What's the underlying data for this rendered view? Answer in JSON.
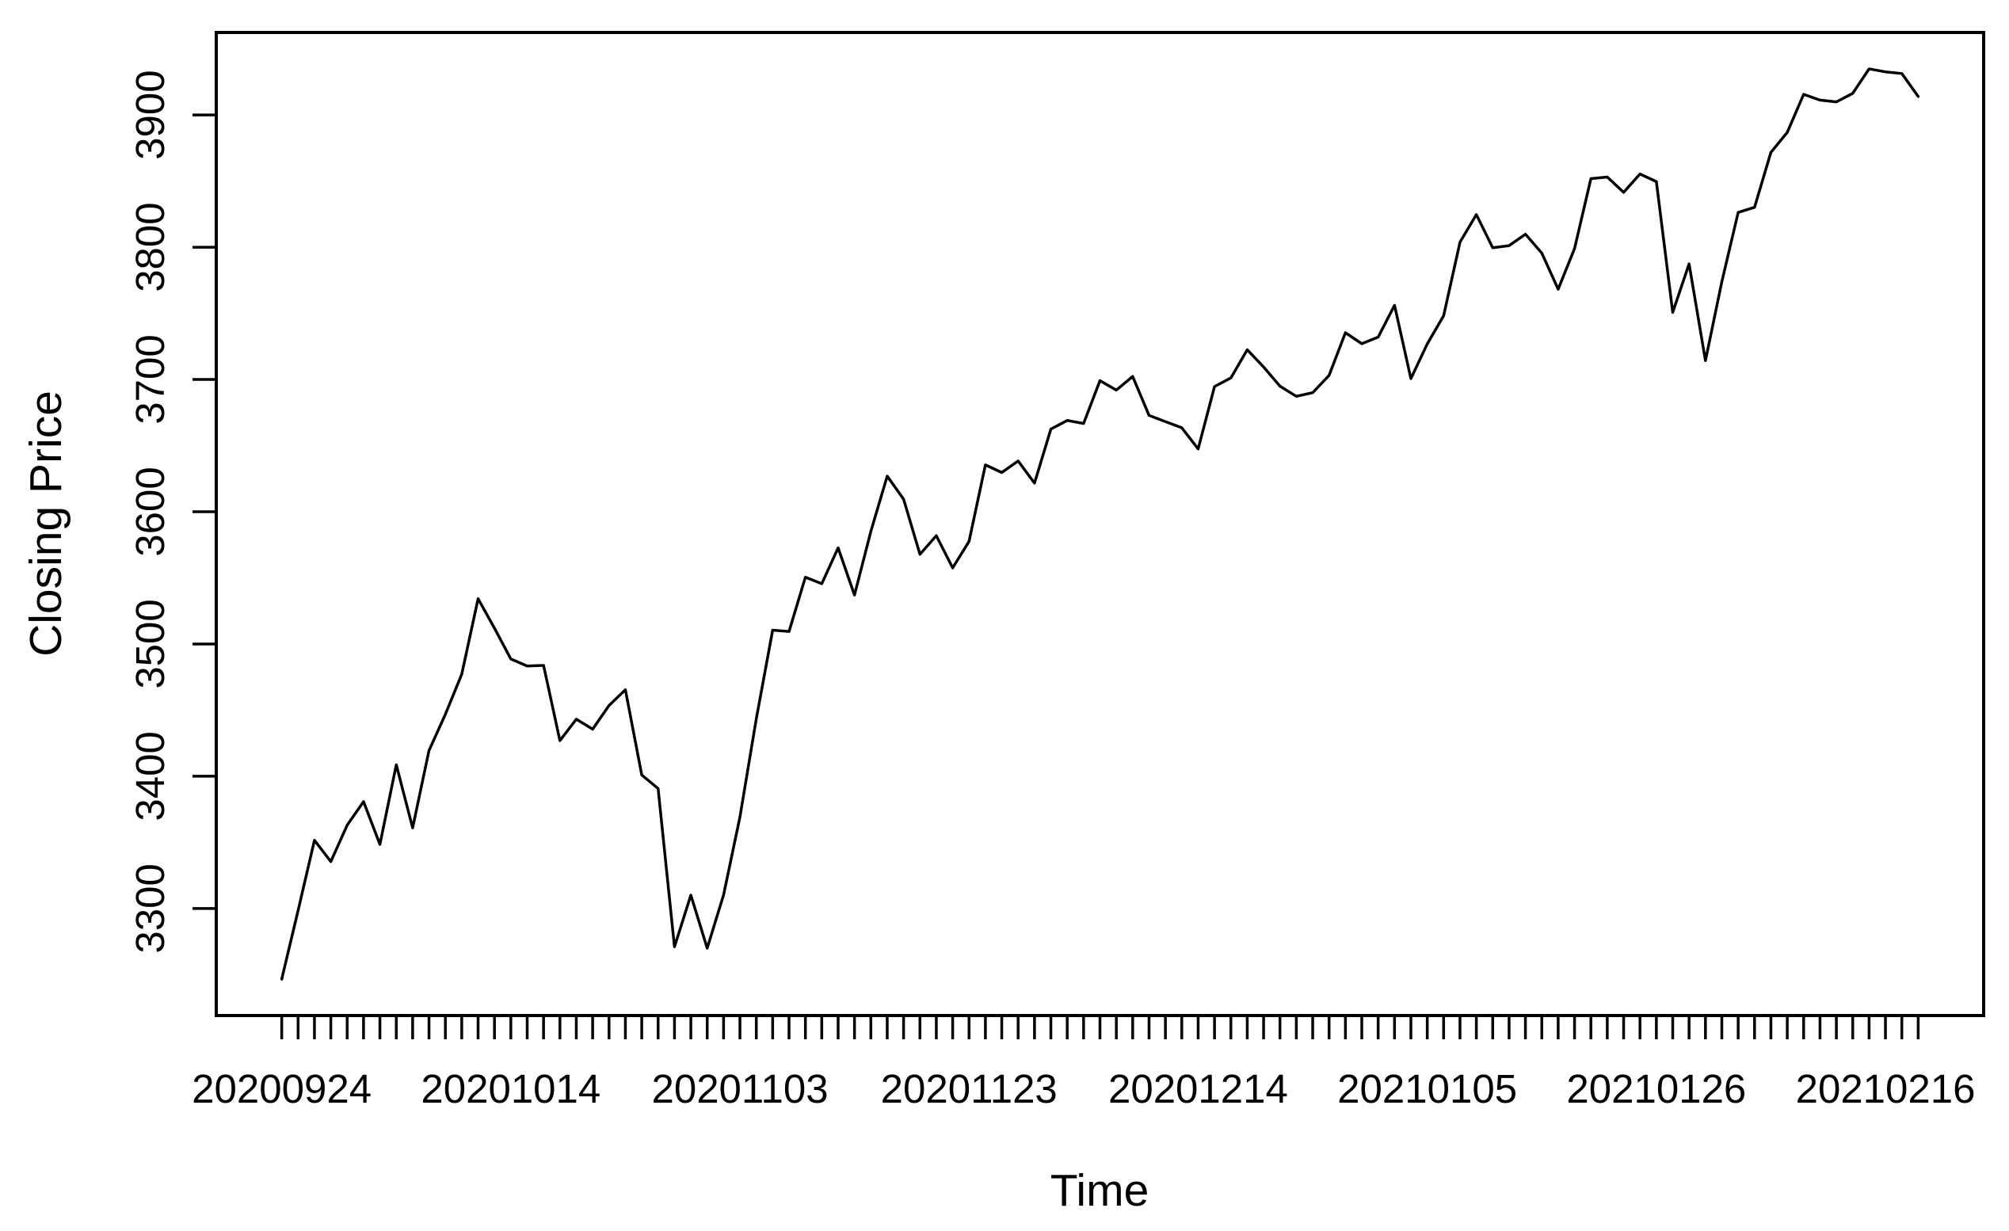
{
  "chart_data": {
    "type": "line",
    "title": "",
    "xlabel": "Time",
    "ylabel": "Closing Price",
    "grid": false,
    "legend_position": "none",
    "background_color": "#ffffff",
    "axis_color": "#000000",
    "line_color": "#000000",
    "ylim": [
      3219.06,
      3962.36
    ],
    "xlim_index": [
      -4,
      104
    ],
    "y_ticks": [
      3300,
      3400,
      3500,
      3600,
      3700,
      3800,
      3900
    ],
    "x_label_every_n_ticks": 14,
    "x_labeled_ticks": [
      "20200924",
      "20201014",
      "20201103",
      "20201123",
      "20201214",
      "20210105",
      "20210126",
      "20210216"
    ],
    "series": [
      {
        "name": "Closing Price",
        "x": [
          "20200924",
          "20200925",
          "20200928",
          "20200929",
          "20200930",
          "20201001",
          "20201002",
          "20201005",
          "20201006",
          "20201007",
          "20201008",
          "20201009",
          "20201012",
          "20201013",
          "20201014",
          "20201015",
          "20201016",
          "20201019",
          "20201020",
          "20201021",
          "20201022",
          "20201023",
          "20201026",
          "20201027",
          "20201028",
          "20201029",
          "20201030",
          "20201102",
          "20201103",
          "20201104",
          "20201105",
          "20201106",
          "20201109",
          "20201110",
          "20201111",
          "20201112",
          "20201113",
          "20201116",
          "20201117",
          "20201118",
          "20201119",
          "20201120",
          "20201123",
          "20201124",
          "20201125",
          "20201127",
          "20201130",
          "20201201",
          "20201202",
          "20201203",
          "20201204",
          "20201207",
          "20201208",
          "20201209",
          "20201210",
          "20201211",
          "20201214",
          "20201215",
          "20201216",
          "20201217",
          "20201218",
          "20201221",
          "20201222",
          "20201223",
          "20201224",
          "20201228",
          "20201229",
          "20201230",
          "20201231",
          "20210104",
          "20210105",
          "20210106",
          "20210107",
          "20210108",
          "20210111",
          "20210112",
          "20210113",
          "20210114",
          "20210115",
          "20210119",
          "20210120",
          "20210121",
          "20210122",
          "20210125",
          "20210126",
          "20210127",
          "20210128",
          "20210129",
          "20210201",
          "20210202",
          "20210203",
          "20210204",
          "20210205",
          "20210208",
          "20210209",
          "20210210",
          "20210211",
          "20210212",
          "20210216",
          "20210217",
          "20210218"
        ],
        "values": [
          3246.59,
          3298.46,
          3351.6,
          3335.47,
          3363.0,
          3380.8,
          3348.44,
          3408.63,
          3360.97,
          3419.45,
          3446.83,
          3477.13,
          3534.22,
          3511.93,
          3488.67,
          3483.34,
          3483.81,
          3426.92,
          3443.12,
          3435.56,
          3453.49,
          3465.39,
          3400.97,
          3390.68,
          3271.03,
          3310.11,
          3269.96,
          3310.24,
          3369.16,
          3443.44,
          3510.45,
          3509.44,
          3550.5,
          3545.53,
          3572.66,
          3537.01,
          3585.15,
          3626.91,
          3609.53,
          3567.79,
          3581.87,
          3557.54,
          3577.59,
          3635.41,
          3629.65,
          3638.35,
          3621.63,
          3662.45,
          3669.01,
          3666.72,
          3699.12,
          3691.96,
          3702.25,
          3672.82,
          3668.1,
          3663.46,
          3647.49,
          3694.62,
          3701.17,
          3722.48,
          3709.41,
          3694.92,
          3687.26,
          3690.01,
          3703.06,
          3735.36,
          3727.04,
          3732.04,
          3756.07,
          3700.65,
          3726.86,
          3748.14,
          3803.79,
          3824.68,
          3799.61,
          3801.19,
          3809.84,
          3795.54,
          3768.25,
          3798.91,
          3851.85,
          3853.07,
          3841.47,
          3855.36,
          3849.62,
          3750.77,
          3787.38,
          3714.24,
          3773.86,
          3826.31,
          3830.17,
          3871.74,
          3886.83,
          3915.59,
          3911.23,
          3909.88,
          3916.38,
          3934.83,
          3932.59,
          3931.33,
          3913.97
        ]
      }
    ]
  }
}
